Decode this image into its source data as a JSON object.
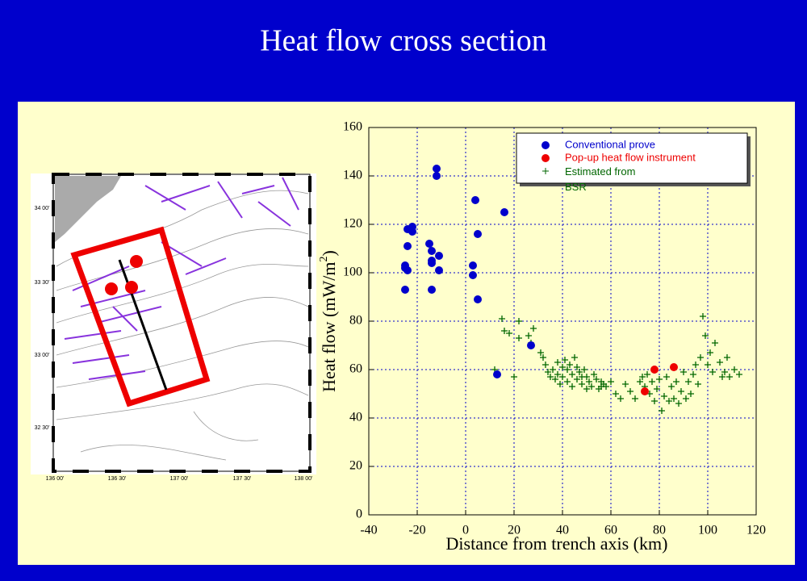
{
  "title": "Heat flow cross section",
  "map": {
    "lat_labels": [
      "34 00'",
      "33 30'",
      "33 00'",
      "32 30'"
    ],
    "lon_labels": [
      "136 00'",
      "136 30'",
      "137 00'",
      "137 30'",
      "138 00'"
    ]
  },
  "chart_data": {
    "type": "scatter",
    "x_label": "Distance from trench axis (km)",
    "y_label": "Heat flow (mW/m",
    "y_label_sup": "2",
    "y_label_end": ")",
    "xlim": [
      -40,
      120
    ],
    "xticks": [
      -40,
      -20,
      0,
      20,
      40,
      60,
      80,
      100,
      120
    ],
    "ylim": [
      0,
      160
    ],
    "yticks": [
      0,
      20,
      40,
      60,
      80,
      100,
      120,
      140,
      160
    ],
    "grid": true,
    "series": [
      {
        "name": "Conventional prove",
        "color": "#0000cc",
        "marker": "circle",
        "x": [
          -24,
          -22,
          -22,
          -24,
          -25,
          -25,
          -24,
          -25,
          -15,
          -14,
          -14,
          -14,
          -11,
          -11,
          -12,
          -12,
          -14,
          4,
          5,
          3,
          3,
          5,
          16,
          27,
          13
        ],
        "values": [
          118,
          119,
          117,
          111,
          103,
          102,
          101,
          93,
          112,
          109,
          105,
          104,
          107,
          101,
          143,
          140,
          93,
          130,
          116,
          103,
          99,
          89,
          125,
          70,
          58
        ]
      },
      {
        "name": "Pop-up heat flow instrument",
        "color": "#ee0000",
        "marker": "circle",
        "x": [
          78,
          86,
          74
        ],
        "values": [
          60,
          61,
          51
        ]
      },
      {
        "name": "Estimated from BSR",
        "color": "#006600",
        "marker": "plus",
        "x": [
          15,
          16,
          18,
          22,
          22,
          26,
          28,
          27,
          31,
          32,
          33,
          34,
          35,
          36,
          37,
          38,
          38,
          39,
          40,
          40,
          41,
          42,
          42,
          43,
          44,
          44,
          45,
          46,
          46,
          47,
          48,
          49,
          50,
          51,
          52,
          53,
          54,
          55,
          56,
          57,
          58,
          60,
          62,
          64,
          66,
          68,
          70,
          72,
          73,
          74,
          75,
          76,
          77,
          78,
          79,
          80,
          81,
          82,
          83,
          84,
          85,
          86,
          87,
          88,
          89,
          90,
          91,
          92,
          93,
          94,
          95,
          96,
          97,
          98,
          99,
          100,
          101,
          102,
          103,
          105,
          106,
          107,
          108,
          109,
          111,
          113,
          48,
          56,
          50,
          12,
          20
        ],
        "values": [
          81,
          76,
          75,
          80,
          73,
          74,
          77,
          71,
          67,
          65,
          62,
          59,
          57,
          60,
          56,
          63,
          58,
          54,
          61,
          57,
          64,
          60,
          55,
          62,
          58,
          53,
          65,
          61,
          56,
          59,
          54,
          60,
          57,
          55,
          53,
          58,
          56,
          52,
          55,
          54,
          53,
          55,
          50,
          48,
          54,
          51,
          48,
          55,
          57,
          53,
          58,
          50,
          55,
          47,
          52,
          56,
          43,
          49,
          57,
          47,
          53,
          48,
          55,
          46,
          51,
          59,
          48,
          55,
          50,
          58,
          62,
          54,
          65,
          82,
          74,
          62,
          67,
          59,
          71,
          63,
          57,
          59,
          65,
          57,
          60,
          58,
          57,
          53,
          52,
          60,
          57
        ]
      }
    ]
  }
}
